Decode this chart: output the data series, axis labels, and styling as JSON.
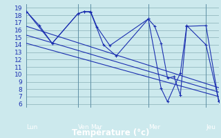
{
  "background_color": "#cce9ed",
  "plot_bg": "#cce9ed",
  "grid_color": "#9bbfc5",
  "line_color": "#1a2eb0",
  "title": "Température (°c)",
  "ylabel_ticks": [
    6,
    7,
    8,
    9,
    10,
    11,
    12,
    13,
    14,
    15,
    16,
    17,
    18,
    19
  ],
  "ylim": [
    5.5,
    19.5
  ],
  "xlim": [
    0,
    30
  ],
  "day_labels": [
    "Lun",
    "Ven",
    "Mar",
    "Mer",
    "Jeu"
  ],
  "day_positions": [
    0,
    8,
    10,
    19,
    28
  ],
  "series1_x": [
    0,
    2,
    4,
    8,
    9,
    10,
    11,
    13,
    19,
    20,
    21,
    22,
    23,
    24,
    25,
    28,
    30
  ],
  "series1_y": [
    18.5,
    16.6,
    14.2,
    18.2,
    18.5,
    18.5,
    16.4,
    13.9,
    17.5,
    16.5,
    14.2,
    9.5,
    9.7,
    7.2,
    16.5,
    16.6,
    6.3
  ],
  "series2_x": [
    0,
    4,
    8,
    9,
    10,
    12,
    14,
    19,
    21,
    22,
    24,
    25,
    28,
    30
  ],
  "series2_y": [
    18.5,
    14.2,
    18.2,
    18.5,
    18.4,
    14.0,
    12.5,
    17.5,
    8.1,
    6.3,
    10.2,
    16.6,
    14.0,
    6.4
  ],
  "trend_lines": [
    {
      "x": [
        0,
        30
      ],
      "y": [
        16.5,
        8.2
      ]
    },
    {
      "x": [
        0,
        30
      ],
      "y": [
        15.3,
        7.6
      ]
    },
    {
      "x": [
        0,
        30
      ],
      "y": [
        14.2,
        7.0
      ]
    }
  ],
  "bottom_bar_color": "#2233aa",
  "bottom_bar_text_color": "#ffffff",
  "xlabel_color": "#1a2eb0",
  "tick_fontsize": 6.5,
  "xlabel_fontsize": 8.5
}
